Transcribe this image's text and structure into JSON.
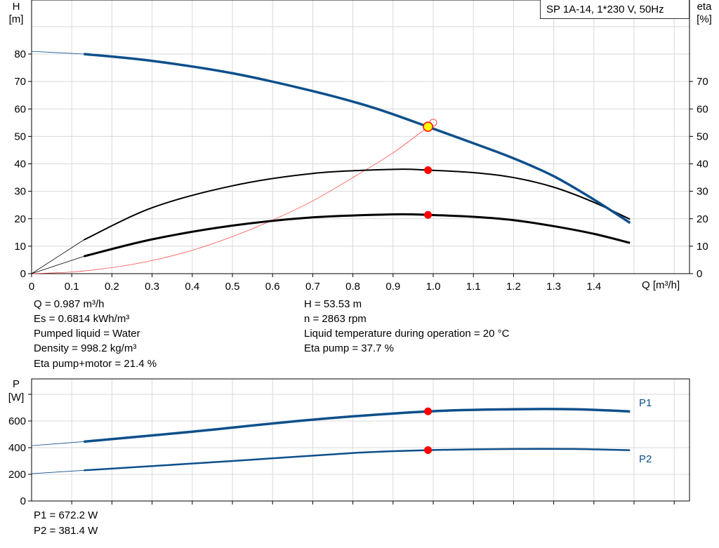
{
  "title": "SP 1A-14, 1*230 V, 50Hz",
  "info_left": [
    "Q = 0.987 m³/h",
    "Es = 0.6814 kWh/m³",
    "Pumped liquid = Water",
    "Density = 998.2 kg/m³",
    "Eta pump+motor = 21.4 %"
  ],
  "info_right": [
    "H = 53.53 m",
    "n = 2863 rpm",
    "Liquid temperature during operation = 20 °C",
    "Eta pump = 37.7 %"
  ],
  "power_info": [
    "P1 = 672.2 W",
    "P2 = 381.4 W"
  ],
  "colors": {
    "head": "#0d4f8b",
    "eta": "#000000",
    "system": "#ff4d4d",
    "point": "#ff0000",
    "duty": "#ffff00",
    "power": "#0d4f8b"
  },
  "chart_data": [
    {
      "type": "line",
      "xlabel": "Q [m³/h]",
      "ylabel_top": "H",
      "ylabel_unit": "[m]",
      "y2label_top": "eta",
      "y2label_unit": "[%]",
      "xlim": [
        0,
        1.64
      ],
      "ylim": [
        0,
        100
      ],
      "xticks": [
        "0",
        "0.1",
        "0.2",
        "0.3",
        "0.4",
        "0.5",
        "0.6",
        "0.7",
        "0.8",
        "0.9",
        "1.0",
        "1.1",
        "1.2",
        "1.3",
        "1.4"
      ],
      "yticks": [
        "0",
        "10",
        "20",
        "30",
        "40",
        "50",
        "60",
        "70",
        "80"
      ],
      "y2ticks": [
        "0",
        "10",
        "20",
        "30",
        "40",
        "50",
        "60",
        "70"
      ],
      "grid": true,
      "series": [
        {
          "id": "H",
          "x": [
            0,
            0.13,
            0.3,
            0.5,
            0.7,
            0.85,
            0.987,
            1.1,
            1.2,
            1.3,
            1.4,
            1.49
          ],
          "y": [
            81,
            80,
            77.5,
            73,
            66.5,
            60.5,
            53.5,
            47.5,
            42,
            35.5,
            27,
            18.5
          ]
        },
        {
          "id": "eta_pump",
          "x": [
            0,
            0.13,
            0.3,
            0.5,
            0.7,
            0.9,
            0.987,
            1.1,
            1.2,
            1.3,
            1.4,
            1.49
          ],
          "y": [
            0,
            12.3,
            24,
            32,
            36.5,
            38,
            37.7,
            36.8,
            35,
            31.5,
            26,
            19.8
          ]
        },
        {
          "id": "eta_pump_motor",
          "x": [
            0,
            0.13,
            0.3,
            0.5,
            0.7,
            0.9,
            0.987,
            1.1,
            1.2,
            1.3,
            1.4,
            1.49
          ],
          "y": [
            0,
            6.3,
            12.5,
            17.5,
            20.5,
            21.6,
            21.4,
            20.7,
            19.5,
            17.3,
            14.5,
            11.2
          ]
        },
        {
          "id": "system",
          "x": [
            0,
            0.1,
            0.2,
            0.3,
            0.4,
            0.5,
            0.6,
            0.7,
            0.8,
            0.9,
            0.987
          ],
          "y": [
            0,
            0.6,
            2.2,
            4.8,
            8.5,
            13.5,
            19.5,
            26.5,
            35,
            44,
            53.5
          ]
        }
      ],
      "duty_point": {
        "Q": 0.987,
        "H": 53.53,
        "eta_pump": 37.7,
        "eta_pump_motor": 21.4
      },
      "requested_point": {
        "Q": 1.0,
        "H": 55
      }
    },
    {
      "type": "line",
      "ylabel_top": "P",
      "ylabel_unit": "[W]",
      "xlim": [
        0,
        1.64
      ],
      "ylim": [
        0,
        916
      ],
      "yticks": [
        "0",
        "200",
        "400",
        "600"
      ],
      "grid": true,
      "series": [
        {
          "name": "P1",
          "x": [
            0,
            0.13,
            0.4,
            0.7,
            0.987,
            1.2,
            1.35,
            1.49
          ],
          "y": [
            415,
            445,
            520,
            610,
            672,
            688,
            688,
            672
          ]
        },
        {
          "name": "P2",
          "x": [
            0,
            0.13,
            0.5,
            0.8,
            0.987,
            1.2,
            1.35,
            1.49
          ],
          "y": [
            205,
            230,
            300,
            360,
            381,
            390,
            390,
            381
          ]
        }
      ]
    }
  ]
}
